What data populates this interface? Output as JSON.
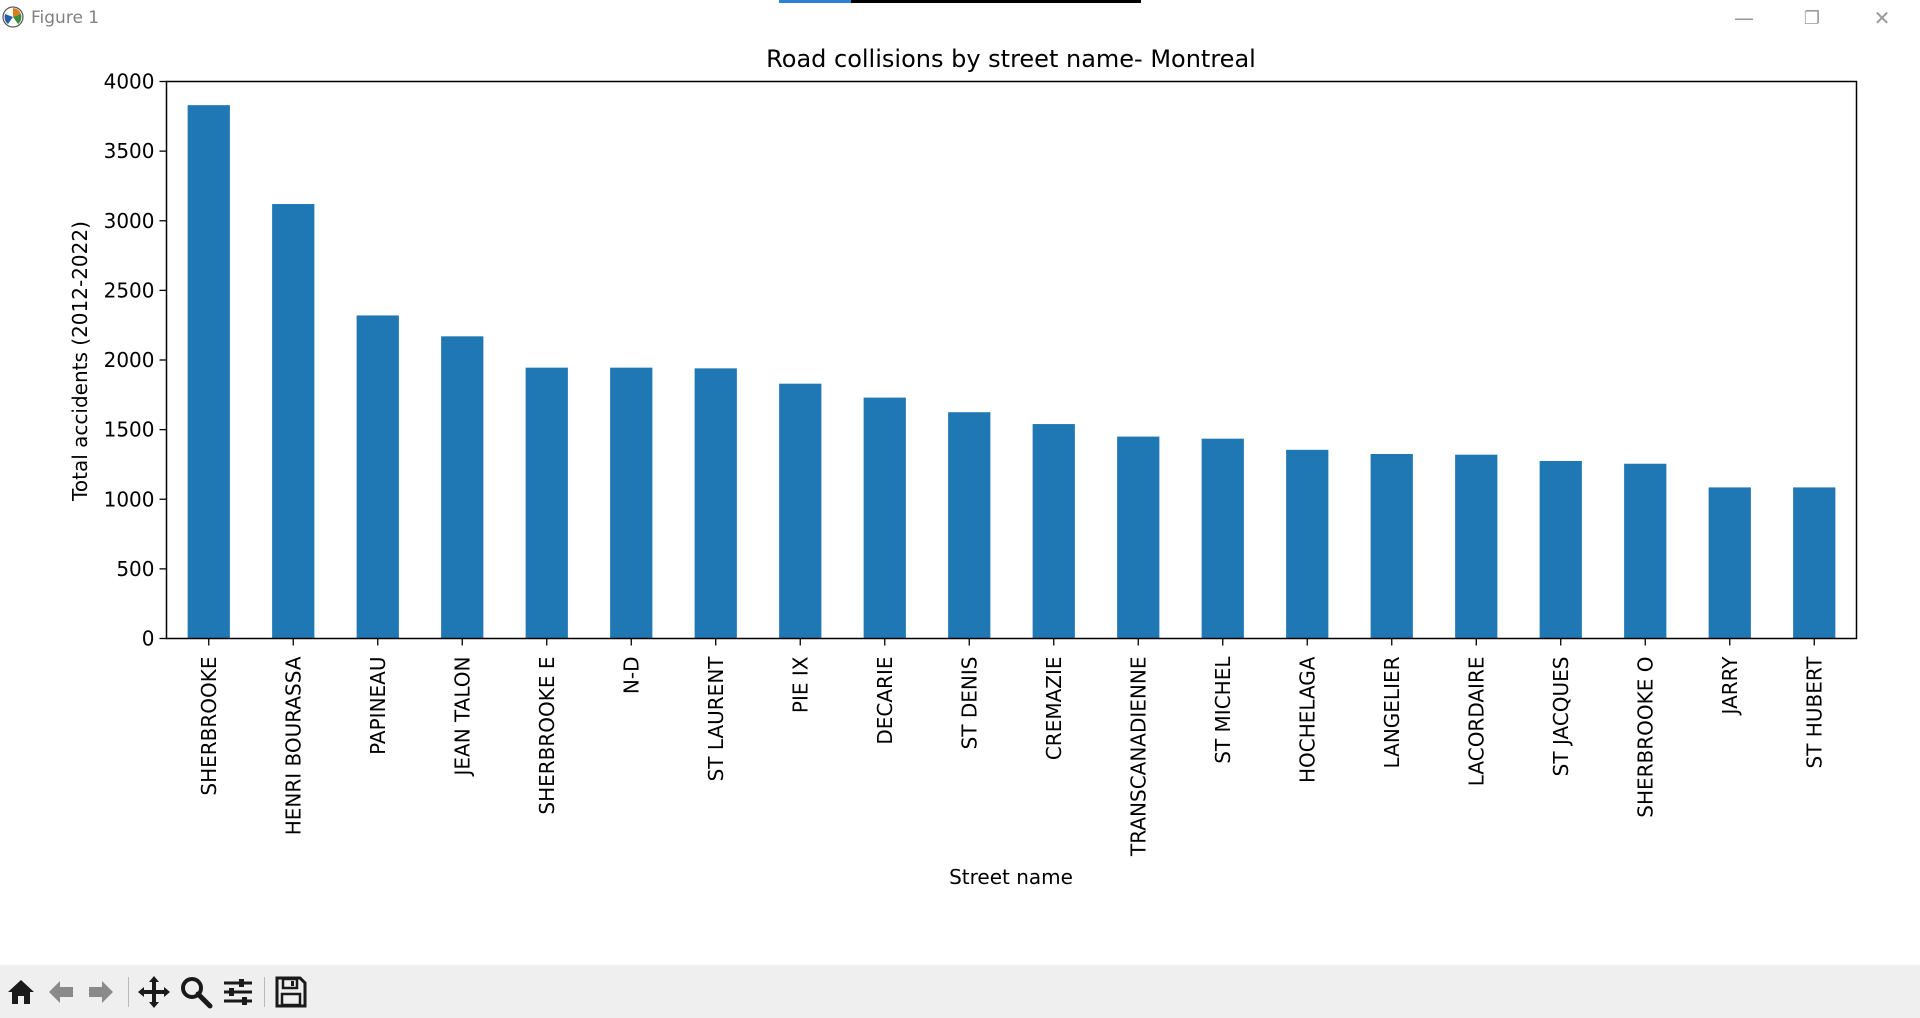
{
  "window": {
    "title": "Figure 1",
    "controls": {
      "minimize": "—",
      "restore": "❐",
      "close": "✕"
    }
  },
  "toolbar": {
    "buttons": [
      {
        "name": "home-icon"
      },
      {
        "name": "back-arrow-icon"
      },
      {
        "name": "forward-arrow-icon"
      },
      {
        "name": "pan-icon"
      },
      {
        "name": "zoom-icon"
      },
      {
        "name": "configure-subplots-icon"
      },
      {
        "name": "save-icon"
      }
    ]
  },
  "colors": {
    "bar": "#1f77b4",
    "toolbar_icon": "#1a1a1a"
  },
  "chart_data": {
    "type": "bar",
    "title": "Road collisions by street name- Montreal",
    "xlabel": "Street name",
    "ylabel": "Total accidents (2012-2022)",
    "ylim": [
      0,
      4000
    ],
    "yticks": [
      0,
      500,
      1000,
      1500,
      2000,
      2500,
      3000,
      3500,
      4000
    ],
    "grid": false,
    "categories": [
      "SHERBROOKE",
      "HENRI BOURASSA",
      "PAPINEAU",
      "JEAN TALON",
      "SHERBROOKE E",
      "N-D",
      "ST LAURENT",
      "PIE IX",
      "DECARIE",
      "ST DENIS",
      "CREMAZIE",
      "TRANSCANADIENNE",
      "ST MICHEL",
      "HOCHELAGA",
      "LANGELIER",
      "LACORDAIRE",
      "ST JACQUES",
      "SHERBROOKE O",
      "JARRY",
      "ST HUBERT"
    ],
    "values": [
      3830,
      3120,
      2320,
      2170,
      1945,
      1945,
      1940,
      1830,
      1730,
      1625,
      1540,
      1450,
      1435,
      1355,
      1325,
      1320,
      1275,
      1255,
      1085,
      1085
    ]
  }
}
